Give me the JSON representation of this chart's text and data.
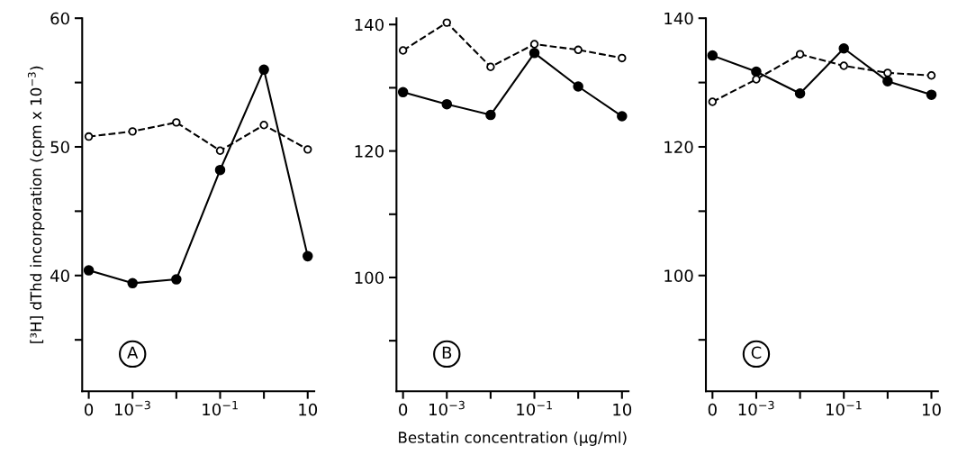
{
  "chart_data": [
    {
      "type": "line",
      "ylabel": "[³H] dThd incorporation (cpm x 10$^{−3}$)",
      "categories": [
        "0",
        "10$^{−3}$",
        null,
        "10$^{−1}$",
        null,
        "10"
      ],
      "ylim": [
        31,
        60
      ],
      "yticks": [
        60,
        {
          "value": 55,
          "label": null
        },
        50,
        {
          "value": 45,
          "label": null
        },
        40,
        {
          "value": 35,
          "label": null
        }
      ],
      "marker": "circle",
      "grid": false,
      "annotations": [
        "A"
      ],
      "series": [
        {
          "color": "#000000",
          "line_style": "dashed",
          "values": [
            50.8,
            51.2,
            51.9,
            49.7,
            51.7,
            49.8
          ]
        },
        {
          "color": "#000000",
          "line_style": "solid",
          "values": [
            40.4,
            39.4,
            39.7,
            48.2,
            56.0,
            41.5
          ]
        }
      ]
    },
    {
      "type": "line",
      "xlabel": "Bestatin concentration (µg/ml)",
      "categories": [
        "0",
        "10$^{−3}$",
        null,
        "10$^{−1}$",
        null,
        "10"
      ],
      "ylim": [
        82,
        141
      ],
      "yticks": [
        140,
        {
          "value": 130,
          "label": null
        },
        120,
        {
          "value": 110,
          "label": null
        },
        100,
        {
          "value": 90,
          "label": null
        }
      ],
      "marker": "circle",
      "grid": false,
      "annotations": [
        "B"
      ],
      "series": [
        {
          "color": "#000000",
          "line_style": "dashed",
          "values": [
            135.9,
            140.3,
            133.3,
            136.9,
            136.0,
            134.7
          ]
        },
        {
          "color": "#000000",
          "line_style": "solid",
          "values": [
            129.3,
            127.4,
            125.7,
            135.5,
            130.2,
            125.5
          ]
        }
      ]
    },
    {
      "type": "line",
      "categories": [
        "0",
        "10$^{−3}$",
        null,
        "10$^{−1}$",
        null,
        "10"
      ],
      "ylim": [
        82,
        140
      ],
      "yticks": [
        140,
        {
          "value": 130,
          "label": null
        },
        120,
        {
          "value": 110,
          "label": null
        },
        100,
        {
          "value": 90,
          "label": null
        }
      ],
      "marker": "circle",
      "grid": false,
      "annotations": [
        "C"
      ],
      "series": [
        {
          "color": "#000000",
          "line_style": "dashed",
          "values": [
            127.0,
            130.5,
            134.4,
            132.6,
            131.5,
            131.1
          ]
        },
        {
          "color": "#000000",
          "line_style": "solid",
          "values": [
            134.2,
            131.7,
            128.3,
            135.3,
            130.2,
            128.1
          ]
        }
      ]
    }
  ]
}
